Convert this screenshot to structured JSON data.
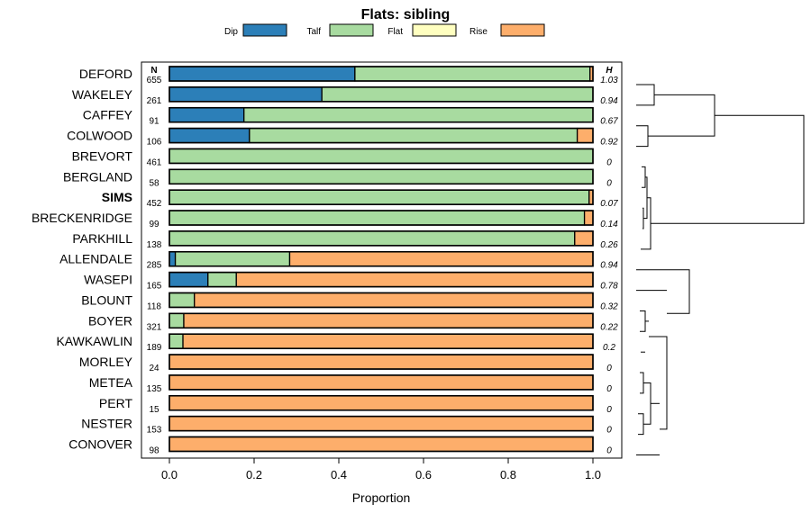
{
  "chart_data": {
    "type": "bar",
    "orientation": "horizontal",
    "stacked": true,
    "title": "Flats: sibling",
    "xlabel": "Proportion",
    "ylabel": "",
    "xlim": [
      0,
      1
    ],
    "x_ticks": [
      "0.0",
      "0.2",
      "0.4",
      "0.6",
      "0.8",
      "1.0"
    ],
    "x_tick_values": [
      0,
      0.2,
      0.4,
      0.6,
      0.8,
      1.0
    ],
    "n_header": "N",
    "h_header": "H",
    "highlight": "SIMS",
    "legend_position": "top",
    "series": [
      {
        "name": "Dip",
        "color": "#2c7fb8"
      },
      {
        "name": "Talf",
        "color": "#a8dba0"
      },
      {
        "name": "Flat",
        "color": "#ffffc0"
      },
      {
        "name": "Rise",
        "color": "#fdae6b"
      }
    ],
    "categories": [
      "DEFORD",
      "WAKELEY",
      "CAFFEY",
      "COLWOOD",
      "BREVORT",
      "BERGLAND",
      "SIMS",
      "BRECKENRIDGE",
      "PARKHILL",
      "ALLENDALE",
      "WASEPI",
      "BLOUNT",
      "BOYER",
      "KAWKAWLIN",
      "MORLEY",
      "METEA",
      "PERT",
      "NESTER",
      "CONOVER"
    ],
    "n": [
      "655",
      "261",
      "91",
      "106",
      "461",
      "58",
      "452",
      "99",
      "138",
      "285",
      "165",
      "118",
      "321",
      "189",
      "24",
      "135",
      "15",
      "153",
      "98"
    ],
    "h": [
      "1.03",
      "0.94",
      "0.67",
      "0.92",
      "0",
      "0",
      "0.07",
      "0.14",
      "0.26",
      "0.94",
      "0.78",
      "0.32",
      "0.22",
      "0.2",
      "0",
      "0",
      "0",
      "0",
      "0"
    ],
    "proportions": [
      [
        0.438,
        0.555,
        0.0,
        0.007
      ],
      [
        0.36,
        0.64,
        0.0,
        0.0
      ],
      [
        0.176,
        0.824,
        0.0,
        0.0
      ],
      [
        0.189,
        0.774,
        0.0,
        0.037
      ],
      [
        0.0,
        1.0,
        0.0,
        0.0
      ],
      [
        0.0,
        1.0,
        0.0,
        0.0
      ],
      [
        0.0,
        0.991,
        0.0,
        0.009
      ],
      [
        0.0,
        0.98,
        0.0,
        0.02
      ],
      [
        0.0,
        0.957,
        0.0,
        0.043
      ],
      [
        0.014,
        0.27,
        0.0,
        0.716
      ],
      [
        0.091,
        0.067,
        0.0,
        0.842
      ],
      [
        0.0,
        0.059,
        0.0,
        0.941
      ],
      [
        0.0,
        0.034,
        0.0,
        0.966
      ],
      [
        0.0,
        0.032,
        0.0,
        0.968
      ],
      [
        0.0,
        0.0,
        0.0,
        1.0
      ],
      [
        0.0,
        0.0,
        0.0,
        1.0
      ],
      [
        0.0,
        0.0,
        0.0,
        1.0
      ],
      [
        0.0,
        0.0,
        0.0,
        1.0
      ],
      [
        0.0,
        0.0,
        0.0,
        1.0
      ]
    ],
    "dendrogram": {
      "description": "hierarchical clustering tree of the rows",
      "height_scale": [
        0,
        1
      ]
    }
  }
}
